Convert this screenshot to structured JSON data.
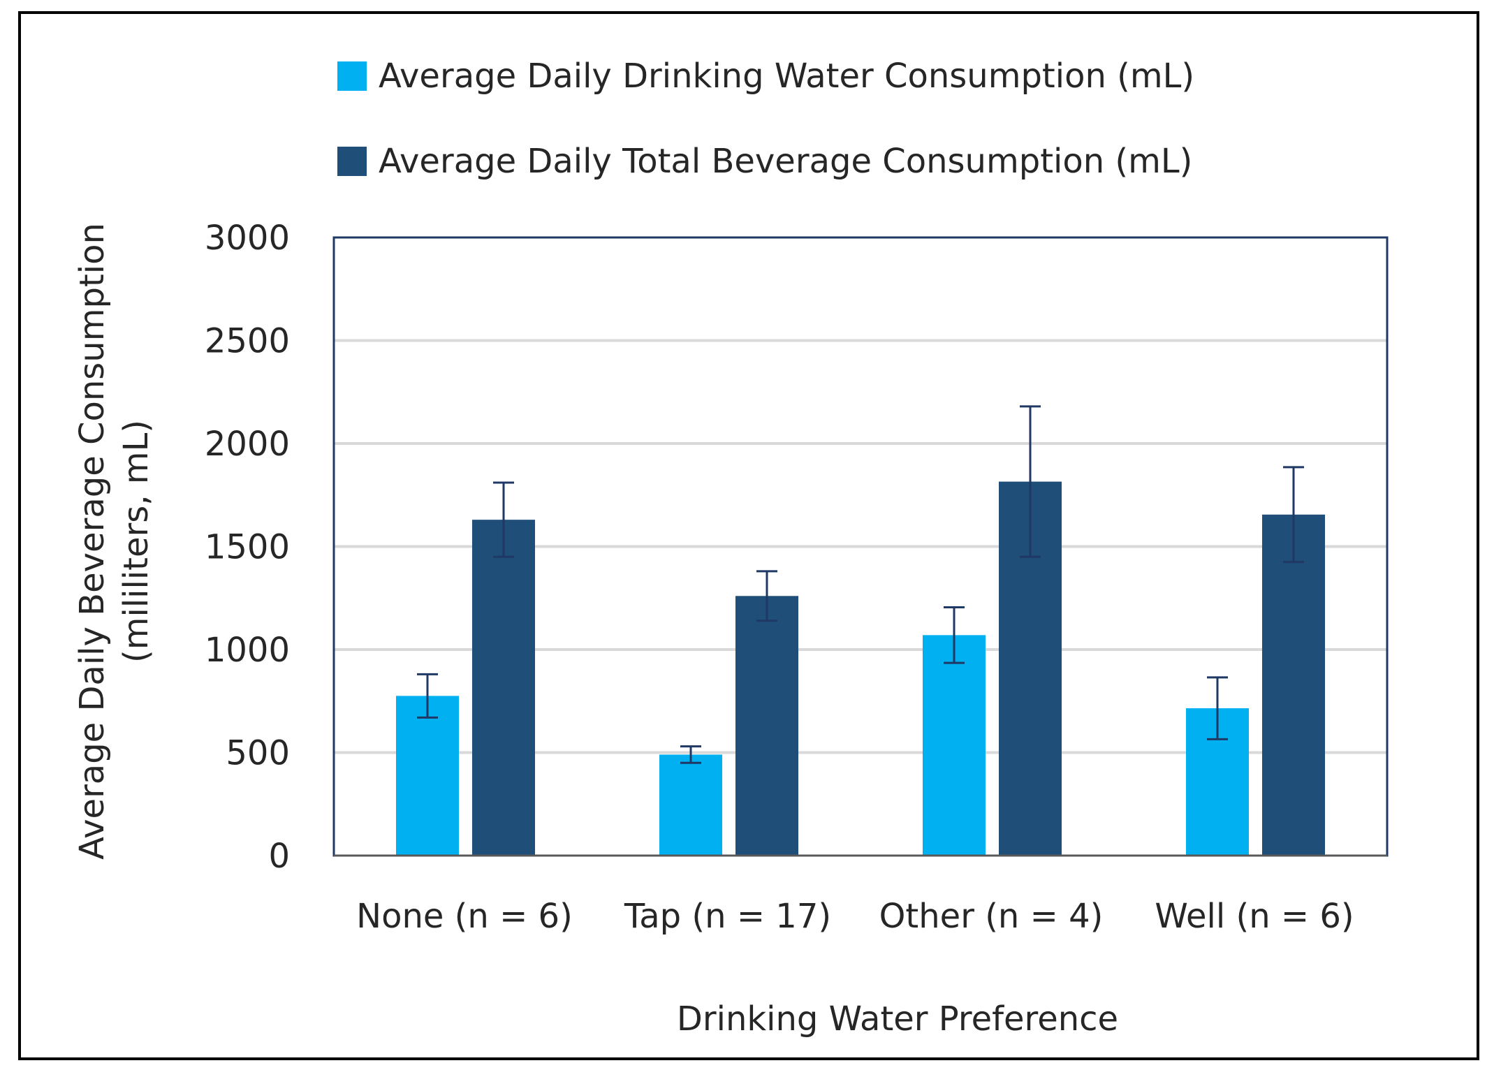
{
  "chart_data": {
    "type": "bar",
    "title": "",
    "xlabel": "Drinking Water Preference",
    "ylabel_line1": "Average Daily Beverage Consumption",
    "ylabel_line2": "(mililiters, mL)",
    "categories": [
      "None (n = 6)",
      "Tap (n = 17)",
      "Other (n = 4)",
      "Well (n = 6)"
    ],
    "ylim": [
      0,
      3000
    ],
    "yticks": [
      0,
      500,
      1000,
      1500,
      2000,
      2500,
      3000
    ],
    "grid": true,
    "legend_position": "top",
    "series": [
      {
        "name": "Average Daily Drinking Water Consumption (mL)",
        "color": "#00B0F0",
        "values": [
          775,
          490,
          1070,
          715
        ],
        "errors": [
          105,
          40,
          135,
          150
        ]
      },
      {
        "name": "Average Daily Total Beverage Consumption (mL)",
        "color": "#1F4E79",
        "values": [
          1630,
          1260,
          1815,
          1655
        ],
        "errors": [
          180,
          120,
          365,
          230
        ]
      }
    ]
  }
}
